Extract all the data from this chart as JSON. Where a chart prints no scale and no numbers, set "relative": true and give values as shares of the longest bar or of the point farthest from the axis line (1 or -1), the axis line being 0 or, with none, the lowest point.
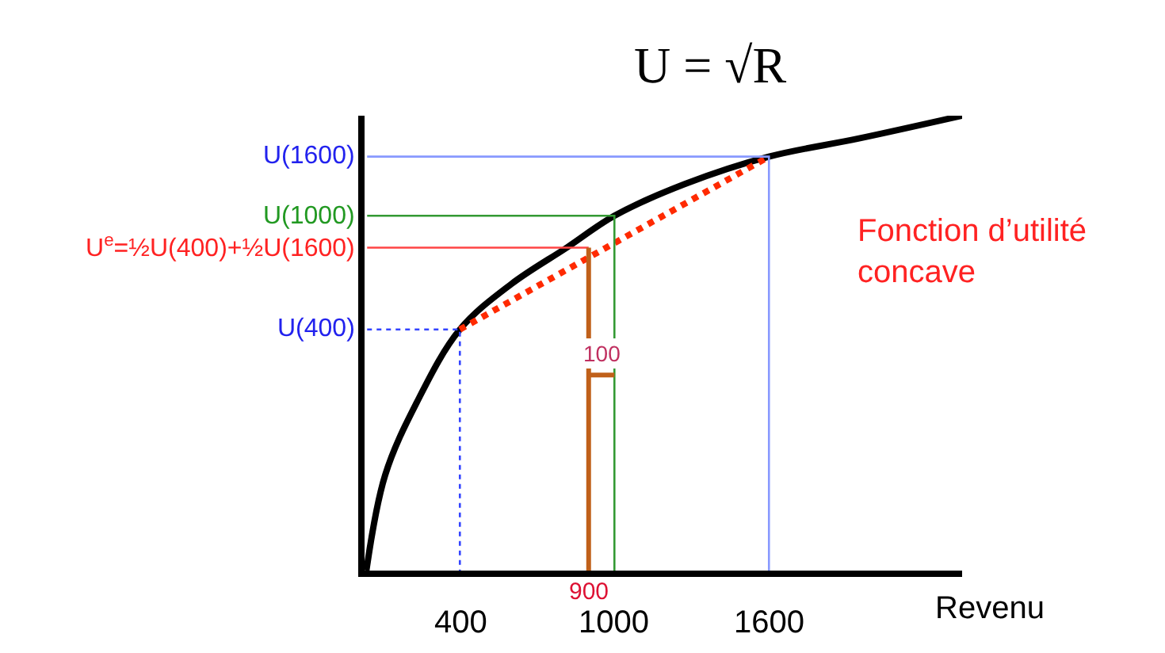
{
  "chart_data": {
    "type": "line",
    "relative": true,
    "xlabel": "Revenu",
    "xlim": [
      30,
      2350
    ],
    "xticks": [
      400,
      1000,
      1600
    ],
    "marker": "none",
    "tick_labels": "x",
    "series": [
      {
        "color": "#000000",
        "x": [
          37,
          110,
          233,
          400,
          600,
          815,
          1000,
          1275,
          1600,
          1950,
          2350
        ],
        "values": [
          0,
          0.21,
          0.37,
          0.53,
          0.63,
          0.71,
          0.78,
          0.85,
          0.91,
          0.95,
          1
        ]
      },
      {
        "color": "#ff2a00",
        "line_style": "dotted",
        "x": [
          400,
          1600
        ],
        "values": [
          0.53,
          0.91
        ]
      },
      {
        "color": "#3344ff",
        "line_style": "dotted",
        "x": [
          40,
          400,
          400
        ],
        "values": [
          0.53,
          0.53,
          0
        ]
      },
      {
        "color": "#8899ff",
        "x": [
          40,
          1600,
          1600
        ],
        "values": [
          0.91,
          0.91,
          0
        ]
      },
      {
        "color": "#339933",
        "x": [
          40,
          1000,
          1000
        ],
        "values": [
          0.78,
          0.78,
          0
        ]
      },
      {
        "color": "#ff4444",
        "x": [
          40,
          900
        ],
        "values": [
          0.71,
          0.71
        ]
      },
      {
        "color": "#c0601a",
        "x": [
          900,
          900
        ],
        "values": [
          0,
          0.71
        ]
      },
      {
        "color": "#c0601a",
        "x": [
          900,
          1000
        ],
        "values": [
          0.43,
          0.43
        ]
      }
    ],
    "annotations": [
      "U = √R",
      "Fonction d’utilité concave",
      "U(1600)",
      "U(1000)",
      "U$^{e}$=½U(400)+½U(1600)",
      "U(400)",
      {
        "text": "100",
        "x": 950,
        "y": 0.43
      },
      {
        "text": "900",
        "x": 900,
        "y": 0
      }
    ]
  }
}
